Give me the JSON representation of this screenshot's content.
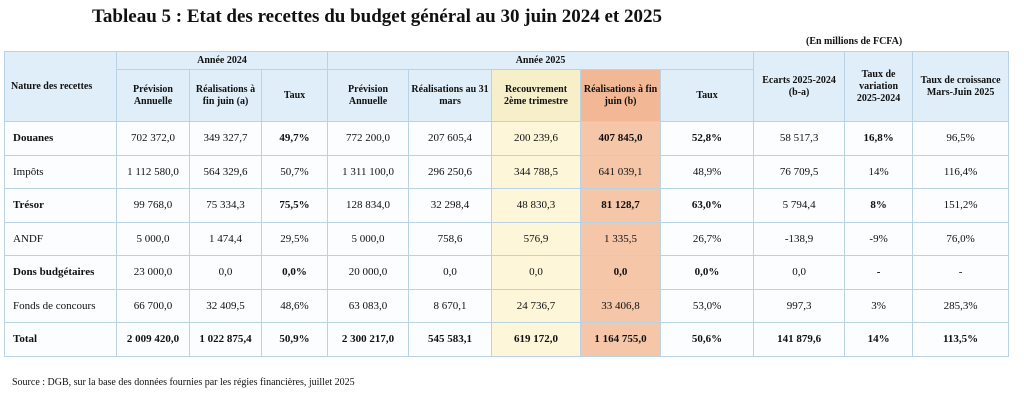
{
  "title": "Tableau 5 : Etat des recettes du budget général au 30 juin 2024 et 2025",
  "unit": "(En millions de FCFA)",
  "headers": {
    "nature": "Nature des recettes",
    "year2024": "Année 2024",
    "year2025": "Année 2025",
    "prevision_2024": "Prévision Annuelle",
    "realisations_2024": "Réalisations à fin juin (a)",
    "taux_2024": "Taux",
    "prevision_2025": "Prévision Annuelle",
    "realisations_mars": "Réalisations au 31 mars",
    "recouvrement": "Recouvrement 2ème trimestre",
    "realisations_2025": "Réalisations à fin juin (b)",
    "taux_2025": "Taux",
    "ecarts": "Ecarts 2025-2024 (b-a)",
    "taux_variation": "Taux de variation 2025-2024",
    "taux_croissance": "Taux de croissance Mars-Juin 2025"
  },
  "rows": [
    {
      "label": "Douanes",
      "prev24": "702 372,0",
      "real24": "349 327,7",
      "taux24": "49,7%",
      "prev25": "772 200,0",
      "mars": "207 605,4",
      "recouv": "200 239,6",
      "real25": "407 845,0",
      "taux25": "52,8%",
      "ecart": "58 517,3",
      "var": "16,8%",
      "croiss": "96,5%"
    },
    {
      "label": "Impôts",
      "prev24": "1 112 580,0",
      "real24": "564 329,6",
      "taux24": "50,7%",
      "prev25": "1 311 100,0",
      "mars": "296 250,6",
      "recouv": "344 788,5",
      "real25": "641 039,1",
      "taux25": "48,9%",
      "ecart": "76 709,5",
      "var": "14%",
      "croiss": "116,4%"
    },
    {
      "label": "Trésor",
      "prev24": "99 768,0",
      "real24": "75 334,3",
      "taux24": "75,5%",
      "prev25": "128 834,0",
      "mars": "32 298,4",
      "recouv": "48 830,3",
      "real25": "81 128,7",
      "taux25": "63,0%",
      "ecart": "5 794,4",
      "var": "8%",
      "croiss": "151,2%"
    },
    {
      "label": "ANDF",
      "prev24": "5 000,0",
      "real24": "1 474,4",
      "taux24": "29,5%",
      "prev25": "5 000,0",
      "mars": "758,6",
      "recouv": "576,9",
      "real25": "1 335,5",
      "taux25": "26,7%",
      "ecart": "-138,9",
      "var": "-9%",
      "croiss": "76,0%"
    },
    {
      "label": "Dons budgétaires",
      "prev24": "23 000,0",
      "real24": "0,0",
      "taux24": "0,0%",
      "prev25": "20 000,0",
      "mars": "0,0",
      "recouv": "0,0",
      "real25": "0,0",
      "taux25": "0,0%",
      "ecart": "0,0",
      "var": "-",
      "croiss": "-"
    },
    {
      "label": "Fonds de concours",
      "prev24": "66 700,0",
      "real24": "32 409,5",
      "taux24": "48,6%",
      "prev25": "63 083,0",
      "mars": "8 670,1",
      "recouv": "24 736,7",
      "real25": "33 406,8",
      "taux25": "53,0%",
      "ecart": "997,3",
      "var": "3%",
      "croiss": "285,3%"
    },
    {
      "label": "Total",
      "prev24": "2 009 420,0",
      "real24": "1 022 875,4",
      "taux24": "50,9%",
      "prev25": "2 300 217,0",
      "mars": "545 583,1",
      "recouv": "619 172,0",
      "real25": "1 164 755,0",
      "taux25": "50,6%",
      "ecart": "141 879,6",
      "var": "14%",
      "croiss": "113,5%"
    }
  ],
  "source": "Source : DGB, sur la base des données fournies par les régies financières, juillet 2025"
}
